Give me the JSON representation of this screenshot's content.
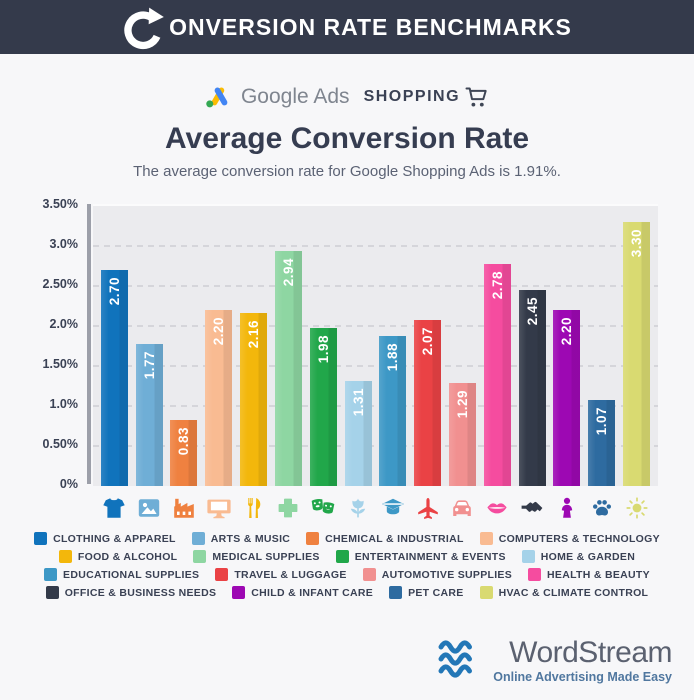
{
  "header": {
    "logo_icon": "circular-arrow-c-icon",
    "title_rest": "ONVERSION RATE BENCHMARKS",
    "bg_color": "#343a4b"
  },
  "brand_row": {
    "google_ads_icon": "google-ads-icon",
    "google_ads_label": "Google Ads",
    "shopping_label": "SHOPPING",
    "cart_icon": "shopping-cart-icon"
  },
  "title": "Average Conversion Rate",
  "subtitle": "The average conversion rate for Google Shopping Ads is 1.91%.",
  "chart_data": {
    "type": "bar",
    "title": "Average Conversion Rate",
    "xlabel": "",
    "ylabel": "",
    "ylim": [
      0,
      3.5
    ],
    "y_ticks": [
      "3.50%",
      "3.0%",
      "2.50%",
      "2.0%",
      "1.50%",
      "1.0%",
      "0.50%",
      "0%"
    ],
    "grid": "dashed-horizontal",
    "legend_position": "bottom",
    "plot_bg": "#ebebee",
    "categories": [
      "CLOTHING & APPAREL",
      "ARTS & MUSIC",
      "CHEMICAL & INDUSTRIAL",
      "COMPUTERS & TECHNOLOGY",
      "FOOD & ALCOHOL",
      "MEDICAL SUPPLIES",
      "ENTERTAINMENT & EVENTS",
      "HOME & GARDEN",
      "EDUCATIONAL SUPPLIES",
      "TRAVEL & LUGGAGE",
      "AUTOMOTIVE SUPPLIES",
      "HEALTH & BEAUTY",
      "OFFICE & BUSINESS NEEDS",
      "CHILD & INFANT CARE",
      "PET CARE",
      "HVAC & CLIMATE CONTROL"
    ],
    "values": [
      2.7,
      1.77,
      0.83,
      2.2,
      2.16,
      2.94,
      1.98,
      1.31,
      1.88,
      2.07,
      1.29,
      2.78,
      2.45,
      2.2,
      1.07,
      3.3
    ],
    "value_labels": [
      "2.70",
      "1.77",
      "0.83",
      "2.20",
      "2.16",
      "2.94",
      "1.98",
      "1.31",
      "1.88",
      "2.07",
      "1.29",
      "2.78",
      "2.45",
      "2.20",
      "1.07",
      "3.30"
    ],
    "colors": [
      "#1073bc",
      "#6faed6",
      "#ef8140",
      "#f9bb92",
      "#f3b70b",
      "#8ed6a2",
      "#21a74a",
      "#a5d2e9",
      "#3d98c6",
      "#ea4245",
      "#f19090",
      "#f54c9f",
      "#333a49",
      "#9d08b3",
      "#2e6ba0",
      "#d9da71"
    ],
    "icons": [
      "tshirt-icon",
      "picture-icon",
      "factory-icon",
      "monitor-icon",
      "utensils-icon",
      "medical-cross-icon",
      "theater-masks-icon",
      "flower-icon",
      "graduation-cap-icon",
      "airplane-icon",
      "car-icon",
      "lips-icon",
      "handshake-icon",
      "baby-icon",
      "paw-icon",
      "sun-icon"
    ]
  },
  "footer": {
    "waves_icon": "waves-icon",
    "brand": "WordStream",
    "tagline": "Online Advertising Made Easy",
    "wave_color": "#2377b7"
  }
}
